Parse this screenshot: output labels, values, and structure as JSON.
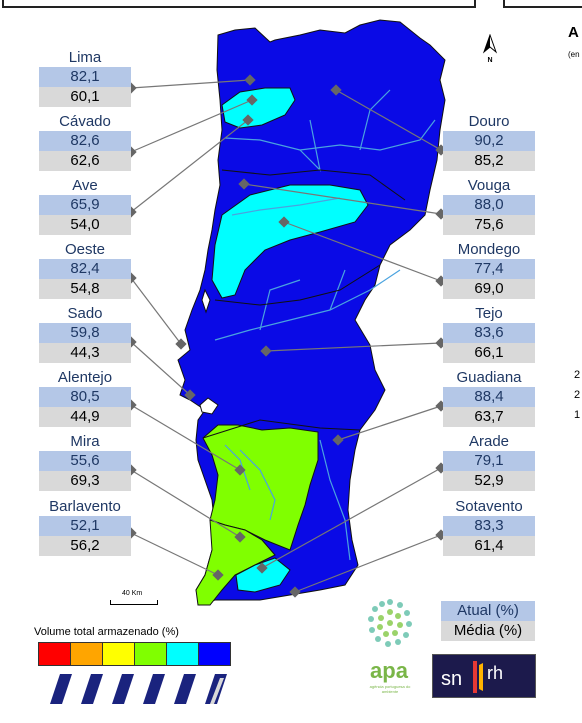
{
  "side_panel": {
    "title_fragment": "A",
    "subtitle_fragment": "(en",
    "numbers": [
      "2",
      "2",
      "1"
    ]
  },
  "north_arrow": {
    "label": "N"
  },
  "scale": {
    "label": "40  Km"
  },
  "basins": [
    {
      "id": "lima",
      "name": "Lima",
      "current": "82,1",
      "average": "60,1",
      "level": "blue"
    },
    {
      "id": "cavado",
      "name": "Cávado",
      "current": "82,6",
      "average": "62,6",
      "level": "cyan"
    },
    {
      "id": "ave",
      "name": "Ave",
      "current": "65,9",
      "average": "54,0",
      "level": "blue"
    },
    {
      "id": "oeste",
      "name": "Oeste",
      "current": "82,4",
      "average": "54,8",
      "level": "blue"
    },
    {
      "id": "sado",
      "name": "Sado",
      "current": "59,8",
      "average": "44,3",
      "level": "green"
    },
    {
      "id": "alentejo",
      "name": "Alentejo",
      "current": "80,5",
      "average": "44,9",
      "level": "blue"
    },
    {
      "id": "mira",
      "name": "Mira",
      "current": "55,6",
      "average": "69,3",
      "level": "green"
    },
    {
      "id": "barlavento",
      "name": "Barlavento",
      "current": "52,1",
      "average": "56,2",
      "level": "green"
    },
    {
      "id": "douro",
      "name": "Douro",
      "current": "90,2",
      "average": "85,2",
      "level": "blue"
    },
    {
      "id": "vouga",
      "name": "Vouga",
      "current": "88,0",
      "average": "75,6",
      "level": "blue"
    },
    {
      "id": "mondego",
      "name": "Mondego",
      "current": "77,4",
      "average": "69,0",
      "level": "cyan"
    },
    {
      "id": "tejo",
      "name": "Tejo",
      "current": "83,6",
      "average": "66,1",
      "level": "blue"
    },
    {
      "id": "guadiana",
      "name": "Guadiana",
      "current": "88,4",
      "average": "63,7",
      "level": "blue"
    },
    {
      "id": "arade",
      "name": "Arade",
      "current": "79,1",
      "average": "52,9",
      "level": "blue"
    },
    {
      "id": "sotavento",
      "name": "Sotavento",
      "current": "83,3",
      "average": "61,4",
      "level": "cyan"
    }
  ],
  "legend": {
    "title": "Volume total armazenado (%)",
    "colors": [
      "#ff0000",
      "#ffa500",
      "#ffff00",
      "#80ff00",
      "#00ffff",
      "#0000ff"
    ]
  },
  "key": {
    "current_label": "Atual (%)",
    "average_label": "Média (%)"
  },
  "logos": {
    "apa_text": "apa",
    "apa_subtext": "agência portuguesa do ambiente",
    "snirh_text": "snirh"
  },
  "map_colors": {
    "blue": "#0a0ae6",
    "cyan": "#00ffff",
    "green": "#80ff00",
    "outline": "#111111",
    "river": "#4aa3df"
  }
}
